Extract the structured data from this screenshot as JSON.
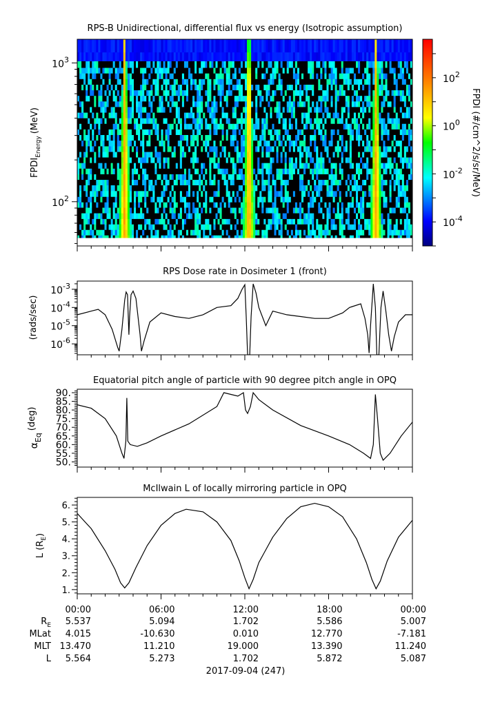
{
  "chart_data": [
    {
      "type": "heatmap",
      "title": "RPS-B  Unidirectional, differential flux vs energy (Isotropic assumption)",
      "ylabel_main": "FPDI",
      "ylabel_sub": "Energy",
      "ylabel_unit": "(MeV)",
      "yscale": "log",
      "ylim": [
        48,
        1480
      ],
      "yticks": [
        {
          "base": "10",
          "exp": "2",
          "value": 100
        },
        {
          "base": "10",
          "exp": "3",
          "value": 1000
        }
      ],
      "xlim_hours": [
        0,
        24
      ],
      "energy_bins_mev": [
        55,
        60,
        66,
        72,
        79,
        87,
        95,
        104,
        114,
        126,
        138,
        151,
        166,
        182,
        200,
        219,
        240,
        264,
        290,
        318,
        349,
        383,
        420,
        461,
        506,
        555,
        609,
        668,
        733,
        805,
        883,
        969,
        1100,
        1300
      ],
      "perigee_hours": [
        3.4,
        12.3,
        21.4
      ],
      "colorbar": {
        "label": "FPDI (#/cm^2/s/sr/MeV)",
        "scale": "log",
        "range_log10": [
          -5,
          3.6
        ],
        "ticks": [
          {
            "base": "10",
            "exp": "2",
            "value": 2
          },
          {
            "base": "10",
            "exp": "0",
            "value": 0
          },
          {
            "base": "10",
            "exp": "-2",
            "value": -2
          },
          {
            "base": "10",
            "exp": "-4",
            "value": -4
          }
        ]
      }
    },
    {
      "type": "line",
      "title": "RPS  Dose rate in Dosimeter 1 (front)",
      "ylabel": "(rads/sec)",
      "yscale": "log",
      "ylim_log10": [
        -6.6,
        -2.55
      ],
      "yticks": [
        {
          "base": "10",
          "exp": "-3",
          "value": -3
        },
        {
          "base": "10",
          "exp": "-4",
          "value": -4
        },
        {
          "base": "10",
          "exp": "-5",
          "value": -5
        },
        {
          "base": "10",
          "exp": "-6",
          "value": -6
        }
      ],
      "x_hours": [
        0,
        1,
        1.5,
        2,
        2.5,
        2.9,
        3.0,
        3.2,
        3.4,
        3.5,
        3.6,
        3.7,
        3.75,
        3.85,
        4.0,
        4.2,
        4.5,
        4.6,
        4.8,
        5.2,
        6,
        7,
        8,
        9,
        10,
        11,
        11.5,
        11.8,
        12.0,
        12.1,
        12.2,
        12.35,
        12.45,
        12.6,
        12.8,
        13,
        13.5,
        14,
        15,
        16,
        17,
        18,
        19,
        19.5,
        20.3,
        20.6,
        20.8,
        20.9,
        21.0,
        21.2,
        21.35,
        21.45,
        21.6,
        21.75,
        21.9,
        22.1,
        22.3,
        22.5,
        22.7,
        23,
        23.5,
        24
      ],
      "log10_values": [
        -4.4,
        -4.2,
        -4.1,
        -4.4,
        -5.2,
        -6.2,
        -6.4,
        -5.2,
        -3.6,
        -3.15,
        -3.3,
        -5.5,
        -4.5,
        -3.3,
        -3.1,
        -3.5,
        -5.5,
        -6.4,
        -5.8,
        -4.8,
        -4.3,
        -4.5,
        -4.6,
        -4.4,
        -4.0,
        -3.9,
        -3.5,
        -3.0,
        -2.75,
        -4.5,
        -6.6,
        -6.6,
        -4.5,
        -2.7,
        -3.2,
        -4.0,
        -5.0,
        -4.2,
        -4.4,
        -4.5,
        -4.6,
        -4.6,
        -4.3,
        -4.0,
        -3.8,
        -4.6,
        -5.5,
        -6.5,
        -5.0,
        -2.7,
        -4.0,
        -6.6,
        -6.6,
        -4.0,
        -3.1,
        -4.2,
        -5.5,
        -6.4,
        -5.6,
        -4.8,
        -4.4,
        -4.4
      ]
    },
    {
      "type": "line",
      "title": "Equatorial pitch angle of particle with 90 degree pitch angle in OPQ",
      "ylabel_main": "α",
      "ylabel_sub": "Eq",
      "ylabel_unit": "(deg)",
      "ylim": [
        47,
        92
      ],
      "yticks": [
        "90.",
        "85.",
        "80.",
        "75.",
        "70.",
        "65.",
        "60.",
        "55.",
        "50."
      ],
      "ytick_values": [
        90,
        85,
        80,
        75,
        70,
        65,
        60,
        55,
        50
      ],
      "x_hours": [
        0,
        1,
        2,
        2.8,
        3.2,
        3.35,
        3.48,
        3.55,
        3.62,
        3.8,
        4.3,
        5,
        6,
        8,
        10,
        10.5,
        11,
        11.5,
        11.9,
        12.05,
        12.2,
        12.4,
        12.6,
        13,
        14,
        16,
        18,
        19.5,
        20.5,
        21.0,
        21.2,
        21.35,
        21.5,
        21.7,
        21.9,
        22.4,
        23.2,
        24
      ],
      "values": [
        83,
        81,
        75,
        65,
        55,
        52,
        62,
        87,
        62,
        60,
        59,
        61,
        65,
        72,
        82,
        90,
        89,
        88,
        90,
        80,
        78,
        82,
        90,
        86,
        80,
        71,
        65,
        60,
        55,
        52,
        60,
        89,
        75,
        55,
        51,
        55,
        65,
        73
      ]
    },
    {
      "type": "line",
      "title": "McIlwain L of locally mirroring particle in OPQ",
      "ylabel_main": "L (R",
      "ylabel_sub": "E",
      "ylabel_end": ")",
      "ylim": [
        0.75,
        6.45
      ],
      "yticks": [
        "1.",
        "2.",
        "3.",
        "4.",
        "5.",
        "6."
      ],
      "ytick_values": [
        1,
        2,
        3,
        4,
        5,
        6
      ],
      "x_hours": [
        0,
        1,
        2,
        2.7,
        3.1,
        3.4,
        3.7,
        4.2,
        5,
        6,
        7,
        7.8,
        9,
        10,
        11,
        11.6,
        12,
        12.3,
        12.6,
        13,
        14,
        15,
        16,
        17,
        18,
        19,
        20,
        20.7,
        21.1,
        21.4,
        21.7,
        22.2,
        23,
        24
      ],
      "values": [
        5.5,
        4.6,
        3.3,
        2.2,
        1.4,
        1.1,
        1.4,
        2.3,
        3.6,
        4.8,
        5.5,
        5.75,
        5.6,
        5.0,
        3.9,
        2.7,
        1.7,
        1.05,
        1.6,
        2.6,
        4.1,
        5.2,
        5.9,
        6.1,
        5.9,
        5.3,
        4.0,
        2.6,
        1.6,
        1.05,
        1.5,
        2.7,
        4.1,
        5.1
      ]
    }
  ],
  "ephemeris": {
    "row_labels": [
      {
        "main": "R",
        "sub": "E"
      },
      {
        "main": "MLat",
        "sub": ""
      },
      {
        "main": "MLT",
        "sub": ""
      },
      {
        "main": "L",
        "sub": ""
      }
    ],
    "times": [
      "00:00",
      "06:00",
      "12:00",
      "18:00",
      "00:00"
    ],
    "time_hours": [
      0,
      6,
      12,
      18,
      24
    ],
    "rows": [
      [
        "5.537",
        "5.094",
        "1.702",
        "5.586",
        "5.007"
      ],
      [
        "4.015",
        "-10.630",
        "0.010",
        "12.770",
        "-7.181"
      ],
      [
        "13.470",
        "11.210",
        "19.000",
        "13.390",
        "11.240"
      ],
      [
        "5.564",
        "5.273",
        "1.702",
        "5.872",
        "5.087"
      ]
    ],
    "date_label": "2017-09-04 (247)"
  }
}
